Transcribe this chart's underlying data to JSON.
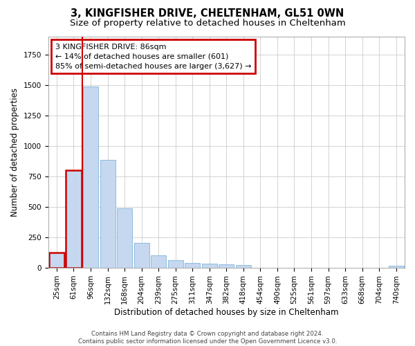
{
  "title": "3, KINGFISHER DRIVE, CHELTENHAM, GL51 0WN",
  "subtitle": "Size of property relative to detached houses in Cheltenham",
  "xlabel": "Distribution of detached houses by size in Cheltenham",
  "ylabel": "Number of detached properties",
  "footer_line1": "Contains HM Land Registry data © Crown copyright and database right 2024.",
  "footer_line2": "Contains public sector information licensed under the Open Government Licence v3.0.",
  "annotation_line1": "3 KINGFISHER DRIVE: 86sqm",
  "annotation_line2": "← 14% of detached houses are smaller (601)",
  "annotation_line3": "85% of semi-detached houses are larger (3,627) →",
  "bar_color": "#c5d8f0",
  "bar_edge_color": "#7fb4d8",
  "highlight_bar_edge_color": "#cc0000",
  "annotation_box_edge_color": "#cc0000",
  "annotation_box_face_color": "#ffffff",
  "property_line_color": "#cc0000",
  "categories": [
    "25sqm",
    "61sqm",
    "96sqm",
    "132sqm",
    "168sqm",
    "204sqm",
    "239sqm",
    "275sqm",
    "311sqm",
    "347sqm",
    "382sqm",
    "418sqm",
    "454sqm",
    "490sqm",
    "525sqm",
    "561sqm",
    "597sqm",
    "633sqm",
    "668sqm",
    "704sqm",
    "740sqm"
  ],
  "values": [
    125,
    800,
    1490,
    885,
    490,
    205,
    105,
    65,
    40,
    35,
    30,
    25,
    0,
    0,
    0,
    0,
    0,
    0,
    0,
    0,
    18
  ],
  "ylim": [
    0,
    1900
  ],
  "highlight_bar_indices": [
    0,
    1
  ],
  "property_line_x": 1.5,
  "grid_color": "#cccccc",
  "background_color": "#ffffff",
  "title_fontsize": 10.5,
  "subtitle_fontsize": 9.5,
  "axis_label_fontsize": 8.5,
  "tick_fontsize": 7.5,
  "annotation_fontsize": 8
}
